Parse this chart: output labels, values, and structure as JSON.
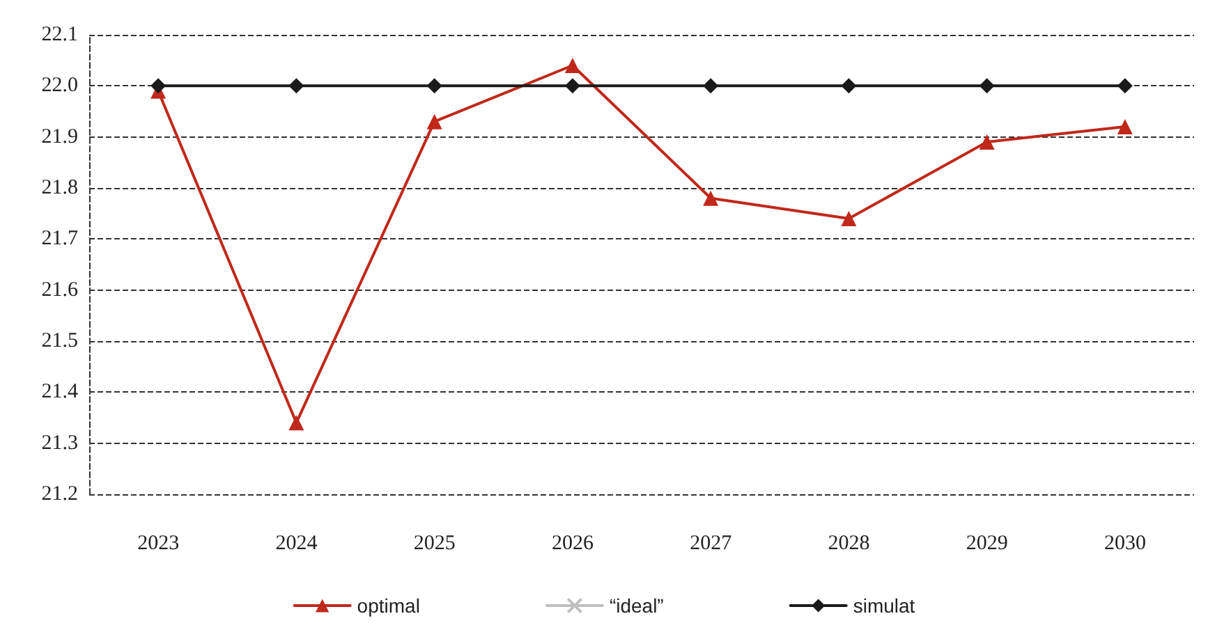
{
  "chart_data": {
    "type": "line",
    "categories": [
      "2023",
      "2024",
      "2025",
      "2026",
      "2027",
      "2028",
      "2029",
      "2030"
    ],
    "series": [
      {
        "name": "optimal",
        "color": "#c0281b",
        "marker": "triangle",
        "values": [
          21.99,
          21.34,
          21.93,
          22.04,
          21.78,
          21.74,
          21.89,
          21.92
        ]
      },
      {
        "name": "“ideal”",
        "color": "#bfbfbf",
        "marker": "cross",
        "values": [
          null,
          null,
          null,
          null,
          null,
          null,
          null,
          null
        ]
      },
      {
        "name": "simulat",
        "color": "#1a1a1a",
        "marker": "diamond",
        "values": [
          22.0,
          22.0,
          22.0,
          22.0,
          22.0,
          22.0,
          22.0,
          22.0
        ]
      }
    ],
    "ylim": [
      21.2,
      22.1
    ],
    "yticks": [
      21.2,
      21.3,
      21.4,
      21.5,
      21.6,
      21.7,
      21.8,
      21.9,
      {
        "value": 22.0,
        "label": "22.0"
      },
      22.1
    ],
    "grid": "y",
    "legend": "bottom",
    "line_style": "solid"
  }
}
